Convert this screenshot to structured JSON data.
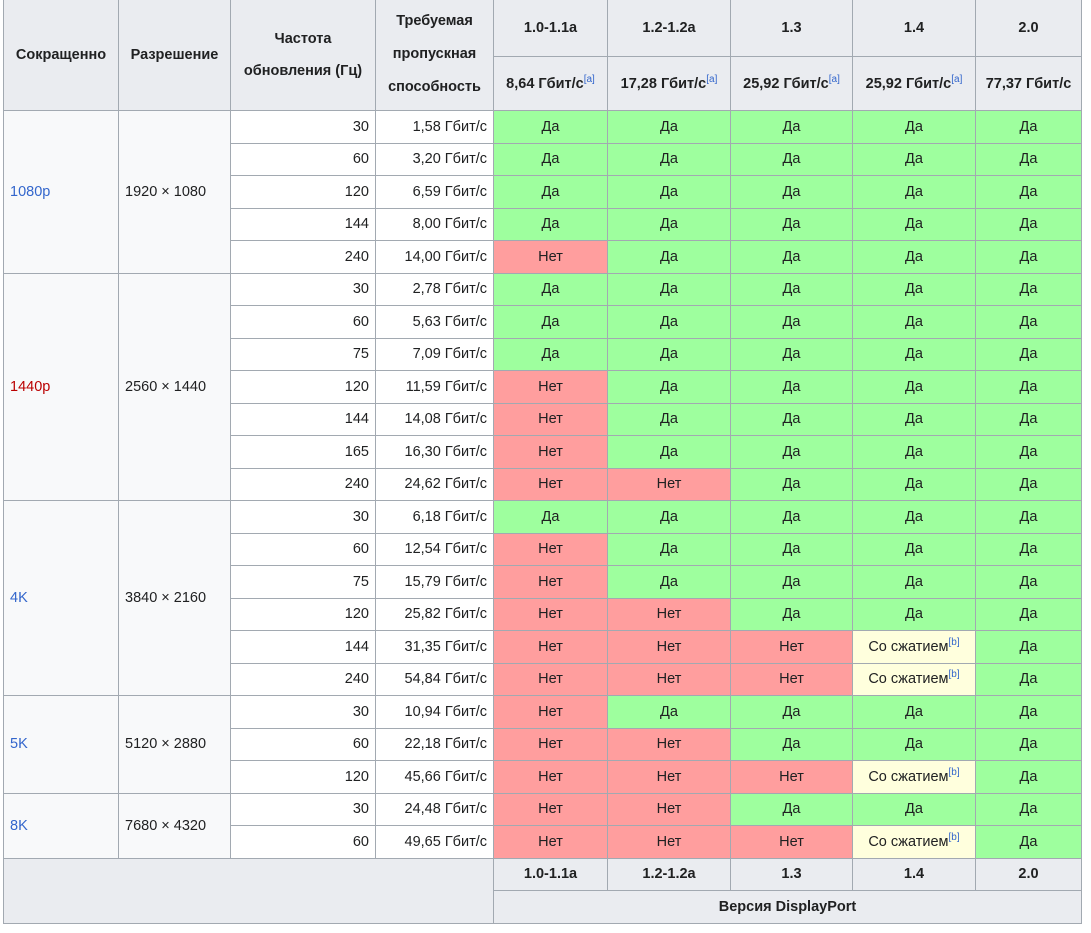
{
  "header": {
    "short": "Сокращенно",
    "resolution": "Разрешение",
    "refresh_line1": "Частота",
    "refresh_line2": "обновления (Гц)",
    "bandwidth_line1": "Требуемая",
    "bandwidth_line2": "пропускная",
    "bandwidth_line3": "способность",
    "versions": [
      {
        "name": "1.0-1.1a",
        "rate": "8,64 Гбит/с",
        "note": "[a]"
      },
      {
        "name": "1.2-1.2a",
        "rate": "17,28 Гбит/с",
        "note": "[a]"
      },
      {
        "name": "1.3",
        "rate": "25,92 Гбит/с",
        "note": "[a]"
      },
      {
        "name": "1.4",
        "rate": "25,92 Гбит/с",
        "note": "[a]"
      },
      {
        "name": "2.0",
        "rate": "77,37 Гбит/с",
        "note": ""
      }
    ]
  },
  "labels": {
    "yes": "Да",
    "no": "Нет",
    "compression": "Со сжатием",
    "compression_note": "[b]"
  },
  "colors": {
    "yes": "#9eff9e",
    "no": "#ff9e9e",
    "compression": "#ffffdd",
    "header": "#eaecf0",
    "link": "#3366cc",
    "redlink": "#ba0000"
  },
  "groups": [
    {
      "abbr": "1080p",
      "abbr_red": false,
      "resolution": "1920 × 1080",
      "rows": [
        {
          "hz": "30",
          "bw": "1,58 Гбит/с",
          "s": [
            "y",
            "y",
            "y",
            "y",
            "y"
          ]
        },
        {
          "hz": "60",
          "bw": "3,20 Гбит/с",
          "s": [
            "y",
            "y",
            "y",
            "y",
            "y"
          ]
        },
        {
          "hz": "120",
          "bw": "6,59 Гбит/с",
          "s": [
            "y",
            "y",
            "y",
            "y",
            "y"
          ]
        },
        {
          "hz": "144",
          "bw": "8,00 Гбит/с",
          "s": [
            "y",
            "y",
            "y",
            "y",
            "y"
          ]
        },
        {
          "hz": "240",
          "bw": "14,00 Гбит/с",
          "s": [
            "n",
            "y",
            "y",
            "y",
            "y"
          ]
        }
      ]
    },
    {
      "abbr": "1440p",
      "abbr_red": true,
      "resolution": "2560 × 1440",
      "rows": [
        {
          "hz": "30",
          "bw": "2,78 Гбит/с",
          "s": [
            "y",
            "y",
            "y",
            "y",
            "y"
          ]
        },
        {
          "hz": "60",
          "bw": "5,63 Гбит/с",
          "s": [
            "y",
            "y",
            "y",
            "y",
            "y"
          ]
        },
        {
          "hz": "75",
          "bw": "7,09 Гбит/с",
          "s": [
            "y",
            "y",
            "y",
            "y",
            "y"
          ]
        },
        {
          "hz": "120",
          "bw": "11,59 Гбит/с",
          "s": [
            "n",
            "y",
            "y",
            "y",
            "y"
          ]
        },
        {
          "hz": "144",
          "bw": "14,08 Гбит/с",
          "s": [
            "n",
            "y",
            "y",
            "y",
            "y"
          ]
        },
        {
          "hz": "165",
          "bw": "16,30 Гбит/с",
          "s": [
            "n",
            "y",
            "y",
            "y",
            "y"
          ]
        },
        {
          "hz": "240",
          "bw": "24,62 Гбит/с",
          "s": [
            "n",
            "n",
            "y",
            "y",
            "y"
          ]
        }
      ]
    },
    {
      "abbr": "4K",
      "abbr_red": false,
      "resolution": "3840 × 2160",
      "rows": [
        {
          "hz": "30",
          "bw": "6,18 Гбит/с",
          "s": [
            "y",
            "y",
            "y",
            "y",
            "y"
          ]
        },
        {
          "hz": "60",
          "bw": "12,54 Гбит/с",
          "s": [
            "n",
            "y",
            "y",
            "y",
            "y"
          ]
        },
        {
          "hz": "75",
          "bw": "15,79 Гбит/с",
          "s": [
            "n",
            "y",
            "y",
            "y",
            "y"
          ]
        },
        {
          "hz": "120",
          "bw": "25,82 Гбит/с",
          "s": [
            "n",
            "n",
            "y",
            "y",
            "y"
          ]
        },
        {
          "hz": "144",
          "bw": "31,35 Гбит/с",
          "s": [
            "n",
            "n",
            "n",
            "c",
            "y"
          ]
        },
        {
          "hz": "240",
          "bw": "54,84 Гбит/с",
          "s": [
            "n",
            "n",
            "n",
            "c",
            "y"
          ]
        }
      ]
    },
    {
      "abbr": "5K",
      "abbr_red": false,
      "resolution": "5120 × 2880",
      "rows": [
        {
          "hz": "30",
          "bw": "10,94 Гбит/с",
          "s": [
            "n",
            "y",
            "y",
            "y",
            "y"
          ]
        },
        {
          "hz": "60",
          "bw": "22,18 Гбит/с",
          "s": [
            "n",
            "n",
            "y",
            "y",
            "y"
          ]
        },
        {
          "hz": "120",
          "bw": "45,66 Гбит/с",
          "s": [
            "n",
            "n",
            "n",
            "c",
            "y"
          ]
        }
      ]
    },
    {
      "abbr": "8K",
      "abbr_red": false,
      "resolution": "7680 × 4320",
      "rows": [
        {
          "hz": "30",
          "bw": "24,48 Гбит/с",
          "s": [
            "n",
            "n",
            "y",
            "y",
            "y"
          ]
        },
        {
          "hz": "60",
          "bw": "49,65 Гбит/с",
          "s": [
            "n",
            "n",
            "n",
            "c",
            "y"
          ]
        }
      ]
    }
  ],
  "footer": {
    "versions": [
      "1.0-1.1a",
      "1.2-1.2a",
      "1.3",
      "1.4",
      "2.0"
    ],
    "caption": "Версия DisplayPort"
  }
}
